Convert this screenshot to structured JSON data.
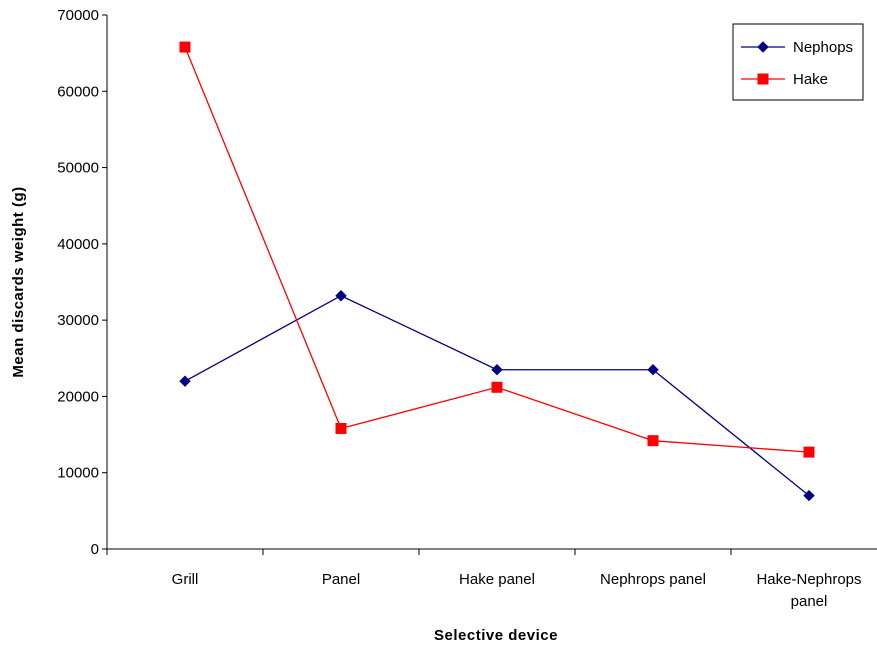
{
  "chart_data": {
    "type": "line",
    "title": "",
    "xlabel": "Selective device",
    "ylabel": "Mean discards weight (g)",
    "categories": [
      [
        "Grill"
      ],
      [
        "Panel"
      ],
      [
        "Hake panel"
      ],
      [
        "Nephrops panel"
      ],
      [
        "Hake-Nephrops",
        "panel"
      ]
    ],
    "ylim": [
      0,
      70000
    ],
    "yticks": [
      0,
      10000,
      20000,
      30000,
      40000,
      50000,
      60000,
      70000
    ],
    "grid": false,
    "legend_position": "top-right",
    "series": [
      {
        "name": "Nephops",
        "color": "#000080",
        "marker": "diamond",
        "values": [
          22000,
          33200,
          23500,
          23500,
          7000
        ]
      },
      {
        "name": "Hake",
        "color": "#ff0000",
        "marker": "square",
        "values": [
          65800,
          15800,
          21200,
          14200,
          12700
        ]
      }
    ]
  }
}
